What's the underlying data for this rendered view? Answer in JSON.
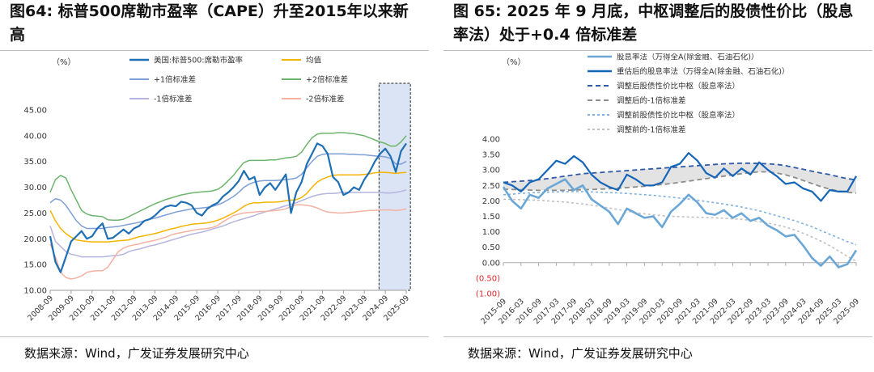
{
  "left": {
    "title": "图64: 标普500席勒市盈率（CAPE）升至2015年以来新高",
    "source": "数据来源：Wind，广发证券发展研究中心"
  },
  "right": {
    "title": "图 65: 2025 年 9 月底，中枢调整后的股债性价比（股息率法）处于+0.4 倍标准差",
    "source": "数据来源：Wind，广发证券发展研究中心"
  },
  "chart_data": [
    {
      "type": "line",
      "unit_label": "（%）",
      "ylim": [
        10,
        45
      ],
      "yticks": [
        "10.00",
        "15.00",
        "20.00",
        "25.00",
        "30.00",
        "35.00",
        "40.00",
        "45.00"
      ],
      "x_tick_labels": [
        "2008-09",
        "2009-09",
        "2010-09",
        "2011-09",
        "2012-09",
        "2013-09",
        "2014-09",
        "2015-09",
        "2016-09",
        "2017-09",
        "2018-09",
        "2019-09",
        "2020-09",
        "2021-09",
        "2022-09",
        "2023-09",
        "2024-09",
        "2025-09"
      ],
      "x": [
        2008.75,
        2009.0,
        2009.25,
        2009.5,
        2009.75,
        2010.0,
        2010.25,
        2010.5,
        2010.75,
        2011.0,
        2011.25,
        2011.5,
        2011.75,
        2012.0,
        2012.25,
        2012.5,
        2012.75,
        2013.0,
        2013.25,
        2013.5,
        2013.75,
        2014.0,
        2014.25,
        2014.5,
        2014.75,
        2015.0,
        2015.25,
        2015.5,
        2015.75,
        2016.0,
        2016.25,
        2016.5,
        2016.75,
        2017.0,
        2017.25,
        2017.5,
        2017.75,
        2018.0,
        2018.25,
        2018.5,
        2018.75,
        2019.0,
        2019.25,
        2019.5,
        2019.75,
        2020.0,
        2020.25,
        2020.5,
        2020.75,
        2021.0,
        2021.25,
        2021.5,
        2021.75,
        2022.0,
        2022.25,
        2022.5,
        2022.75,
        2023.0,
        2023.25,
        2023.5,
        2023.75,
        2024.0,
        2024.25,
        2024.5,
        2024.75,
        2025.0,
        2025.25,
        2025.5,
        2025.75
      ],
      "series": [
        {
          "name": "美国:标普500:席勒市盈率",
          "color": "#1f6fb4",
          "width": 2.2,
          "dash": "",
          "values": [
            20.5,
            15.5,
            13.5,
            16.5,
            19.5,
            20.5,
            21.5,
            20.0,
            20.5,
            22.0,
            23.0,
            20.0,
            20.2,
            21.0,
            21.8,
            21.0,
            22.0,
            22.5,
            23.5,
            23.8,
            24.5,
            25.5,
            26.2,
            26.5,
            26.3,
            27.2,
            27.0,
            26.5,
            25.0,
            24.5,
            25.8,
            26.5,
            27.0,
            28.2,
            29.0,
            30.0,
            31.2,
            33.2,
            31.5,
            32.0,
            28.5,
            30.0,
            30.8,
            29.5,
            31.0,
            32.5,
            25.0,
            29.0,
            31.0,
            34.5,
            36.5,
            38.5,
            38.0,
            36.5,
            32.0,
            31.0,
            28.5,
            29.0,
            30.0,
            29.5,
            31.5,
            33.0,
            35.0,
            36.5,
            37.5,
            36.0,
            33.0,
            37.0,
            38.5
          ]
        },
        {
          "name": "均值",
          "color": "#f5b400",
          "width": 1.5,
          "dash": "",
          "values": [
            25.5,
            23.5,
            22.0,
            21.0,
            20.3,
            19.8,
            19.6,
            19.5,
            19.4,
            19.4,
            19.4,
            19.4,
            19.5,
            19.6,
            19.7,
            19.8,
            20.1,
            20.4,
            20.6,
            20.8,
            21.0,
            21.3,
            21.6,
            21.9,
            22.1,
            22.4,
            22.6,
            22.8,
            22.9,
            23.0,
            23.1,
            23.3,
            23.6,
            24.0,
            24.5,
            25.0,
            25.6,
            26.3,
            26.8,
            27.0,
            27.0,
            27.1,
            27.1,
            27.1,
            27.2,
            27.4,
            27.5,
            27.6,
            28.0,
            28.8,
            30.0,
            31.0,
            31.6,
            32.0,
            32.3,
            32.4,
            32.4,
            32.4,
            32.4,
            32.4,
            32.5,
            32.6,
            32.8,
            32.9,
            32.9,
            32.8,
            32.7,
            32.8,
            32.9
          ]
        },
        {
          "name": "+1倍标准差",
          "color": "#7e9fd6",
          "width": 1.5,
          "dash": "",
          "values": [
            27.0,
            27.8,
            27.5,
            26.5,
            25.0,
            23.5,
            22.5,
            22.0,
            22.0,
            22.0,
            22.0,
            22.2,
            22.3,
            22.4,
            22.6,
            22.8,
            23.0,
            23.2,
            23.5,
            23.8,
            24.0,
            24.3,
            24.6,
            24.9,
            25.2,
            25.4,
            25.6,
            25.8,
            25.9,
            26.0,
            26.1,
            26.3,
            26.6,
            27.0,
            27.6,
            28.2,
            29.0,
            30.0,
            30.6,
            31.0,
            31.2,
            31.3,
            31.3,
            31.3,
            31.4,
            31.5,
            31.6,
            31.8,
            32.5,
            33.8,
            35.0,
            36.0,
            36.4,
            36.5,
            36.5,
            36.5,
            36.5,
            36.4,
            36.4,
            36.3,
            36.3,
            36.2,
            36.1,
            36.0,
            35.9,
            35.6,
            34.5,
            34.5,
            35.0
          ]
        },
        {
          "name": "+2倍标准差",
          "color": "#6db56d",
          "width": 1.5,
          "dash": "",
          "values": [
            29.0,
            31.5,
            32.3,
            31.8,
            29.5,
            27.5,
            25.5,
            24.8,
            24.5,
            24.4,
            24.3,
            23.7,
            23.6,
            23.6,
            23.8,
            24.3,
            24.8,
            25.3,
            25.8,
            26.3,
            26.8,
            27.2,
            27.6,
            27.9,
            28.2,
            28.5,
            28.7,
            28.9,
            29.0,
            29.1,
            29.2,
            29.3,
            29.6,
            30.3,
            31.3,
            32.3,
            33.6,
            34.8,
            35.2,
            35.2,
            35.2,
            35.2,
            35.3,
            35.3,
            35.5,
            35.7,
            35.8,
            36.0,
            36.8,
            38.3,
            39.6,
            40.3,
            40.5,
            40.5,
            40.5,
            40.6,
            40.6,
            40.5,
            40.4,
            40.2,
            40.0,
            39.6,
            39.2,
            38.8,
            38.5,
            38.0,
            38.0,
            38.8,
            40.0
          ]
        },
        {
          "name": "-1倍标准差",
          "color": "#b4b4de",
          "width": 1.5,
          "dash": "",
          "values": [
            22.5,
            19.5,
            18.5,
            17.5,
            17.0,
            16.8,
            16.5,
            16.5,
            16.5,
            16.5,
            16.5,
            16.6,
            16.7,
            16.8,
            17.0,
            17.5,
            17.8,
            18.0,
            18.3,
            18.6,
            18.8,
            19.1,
            19.4,
            19.7,
            20.0,
            20.3,
            20.6,
            20.9,
            21.1,
            21.3,
            21.6,
            21.9,
            22.2,
            22.5,
            22.9,
            23.3,
            23.6,
            23.9,
            24.2,
            24.5,
            24.9,
            25.2,
            25.5,
            25.8,
            26.1,
            26.4,
            26.7,
            27.0,
            27.4,
            27.8,
            28.2,
            28.5,
            28.7,
            28.8,
            28.8,
            28.9,
            29.0,
            29.0,
            29.0,
            29.0,
            29.0,
            29.0,
            29.0,
            29.0,
            28.9,
            28.9,
            29.0,
            29.2,
            29.5
          ]
        },
        {
          "name": "-2倍标准差",
          "color": "#f3b2a2",
          "width": 1.5,
          "dash": "",
          "values": [
            19.0,
            16.5,
            13.5,
            12.5,
            12.2,
            12.4,
            12.8,
            13.5,
            13.7,
            13.8,
            13.8,
            14.5,
            16.0,
            17.5,
            18.2,
            18.6,
            18.8,
            19.0,
            19.3,
            19.5,
            19.7,
            20.0,
            20.3,
            20.7,
            21.0,
            21.2,
            21.4,
            21.6,
            21.8,
            21.9,
            22.0,
            22.2,
            22.6,
            23.3,
            23.9,
            24.5,
            24.8,
            25.0,
            25.1,
            25.2,
            25.3,
            25.3,
            25.4,
            25.5,
            25.6,
            25.8,
            26.3,
            26.6,
            26.6,
            26.5,
            26.3,
            26.0,
            25.5,
            25.2,
            25.1,
            25.0,
            25.0,
            25.1,
            25.2,
            25.3,
            25.4,
            25.5,
            25.5,
            25.6,
            25.6,
            25.6,
            25.5,
            25.6,
            25.8
          ]
        }
      ],
      "highlight_range": [
        "2024-09",
        "2025-09"
      ]
    },
    {
      "type": "line",
      "unit_label": "（%）",
      "ylim": [
        -1.0,
        4.0
      ],
      "yticks": [
        "(1.00)",
        "(0.50)",
        "0.00",
        "0.50",
        "1.00",
        "1.50",
        "2.00",
        "2.50",
        "3.00",
        "3.50",
        "4.00"
      ],
      "negative_tick_color": "#e0262a",
      "x_tick_labels": [
        "2015-09",
        "2016-03",
        "2016-09",
        "2017-03",
        "2017-09",
        "2018-03",
        "2018-09",
        "2019-03",
        "2019-09",
        "2020-03",
        "2020-09",
        "2021-03",
        "2021-09",
        "2022-03",
        "2022-09",
        "2023-03",
        "2023-09",
        "2024-03",
        "2024-09",
        "2025-03",
        "2025-09"
      ],
      "x": [
        2015.75,
        2016.0,
        2016.25,
        2016.5,
        2016.75,
        2017.0,
        2017.25,
        2017.5,
        2017.75,
        2018.0,
        2018.25,
        2018.5,
        2018.75,
        2019.0,
        2019.25,
        2019.5,
        2019.75,
        2020.0,
        2020.25,
        2020.5,
        2020.75,
        2021.0,
        2021.25,
        2021.5,
        2021.75,
        2022.0,
        2022.25,
        2022.5,
        2022.75,
        2023.0,
        2023.25,
        2023.5,
        2023.75,
        2024.0,
        2024.25,
        2024.5,
        2024.75,
        2025.0,
        2025.25,
        2025.5,
        2025.75
      ],
      "series": [
        {
          "name": "股息率法（万得全A(除金融、石油石化)）",
          "color": "#6ba7d6",
          "width": 2.6,
          "dash": "",
          "values": [
            2.45,
            2.0,
            1.75,
            2.2,
            2.1,
            2.4,
            2.55,
            2.7,
            2.35,
            2.5,
            2.05,
            1.85,
            1.65,
            1.25,
            1.75,
            1.6,
            1.45,
            1.5,
            1.15,
            1.65,
            1.9,
            2.2,
            1.95,
            1.6,
            1.55,
            1.7,
            1.45,
            1.6,
            1.35,
            1.45,
            1.2,
            1.05,
            0.85,
            0.9,
            0.55,
            0.15,
            -0.1,
            0.2,
            -0.15,
            -0.05,
            0.4
          ]
        },
        {
          "name": "重估后的股息率法（万得全A(除金融、石油石化)）",
          "color": "#1565b8",
          "width": 2.2,
          "dash": "",
          "values": [
            2.6,
            2.5,
            2.3,
            2.6,
            2.7,
            3.0,
            3.3,
            3.2,
            3.45,
            3.25,
            2.85,
            2.6,
            2.45,
            2.35,
            2.85,
            2.7,
            2.5,
            2.5,
            2.6,
            3.1,
            3.2,
            3.55,
            3.3,
            2.9,
            2.75,
            3.05,
            2.8,
            3.05,
            2.85,
            3.25,
            3.0,
            2.8,
            2.55,
            2.6,
            2.4,
            2.3,
            2.0,
            2.35,
            2.3,
            2.3,
            2.8
          ]
        },
        {
          "name": "调整后股债性价比中枢（股息率法）",
          "color": "#2e5aa8",
          "width": 1.8,
          "dash": "6,4",
          "values": [
            2.6,
            2.62,
            2.64,
            2.66,
            2.68,
            2.72,
            2.76,
            2.8,
            2.84,
            2.88,
            2.9,
            2.92,
            2.94,
            2.96,
            2.98,
            3.0,
            3.02,
            3.04,
            3.06,
            3.08,
            3.1,
            3.12,
            3.14,
            3.16,
            3.18,
            3.2,
            3.21,
            3.22,
            3.22,
            3.21,
            3.2,
            3.18,
            3.14,
            3.08,
            3.02,
            2.96,
            2.9,
            2.85,
            2.78,
            2.72,
            2.68
          ]
        },
        {
          "name": "调整后的-1倍标准差",
          "color": "#8c8c8c",
          "width": 1.8,
          "dash": "6,4",
          "values": [
            2.38,
            2.37,
            2.36,
            2.35,
            2.34,
            2.34,
            2.34,
            2.34,
            2.35,
            2.36,
            2.37,
            2.38,
            2.39,
            2.41,
            2.43,
            2.45,
            2.47,
            2.5,
            2.53,
            2.56,
            2.6,
            2.64,
            2.68,
            2.72,
            2.76,
            2.8,
            2.84,
            2.88,
            2.92,
            2.94,
            2.94,
            2.9,
            2.84,
            2.76,
            2.66,
            2.56,
            2.46,
            2.38,
            2.32,
            2.28,
            2.25
          ]
        },
        {
          "name": "调整前股债性价比中枢（股息率法）",
          "color": "#7fb0e0",
          "width": 1.6,
          "dash": "3,3",
          "values": [
            2.2,
            2.22,
            2.24,
            2.26,
            2.27,
            2.28,
            2.29,
            2.3,
            2.3,
            2.3,
            2.29,
            2.28,
            2.27,
            2.26,
            2.24,
            2.22,
            2.2,
            2.18,
            2.15,
            2.12,
            2.09,
            2.06,
            2.02,
            1.98,
            1.94,
            1.9,
            1.85,
            1.8,
            1.74,
            1.68,
            1.6,
            1.52,
            1.44,
            1.36,
            1.26,
            1.16,
            1.04,
            0.92,
            0.8,
            0.68,
            0.58
          ]
        },
        {
          "name": "调整前的-1倍标准差",
          "color": "#c0c0c0",
          "width": 1.6,
          "dash": "3,3",
          "values": [
            2.05,
            2.05,
            2.04,
            2.03,
            2.02,
            2.0,
            1.98,
            1.96,
            1.93,
            1.9,
            1.86,
            1.82,
            1.77,
            1.72,
            1.67,
            1.62,
            1.58,
            1.55,
            1.52,
            1.5,
            1.49,
            1.48,
            1.47,
            1.46,
            1.45,
            1.44,
            1.42,
            1.4,
            1.37,
            1.33,
            1.28,
            1.22,
            1.15,
            1.06,
            0.95,
            0.83,
            0.7,
            0.55,
            0.38,
            0.2,
            0.05
          ]
        }
      ],
      "band": {
        "name": "band",
        "color": "#d9d9d9"
      }
    }
  ]
}
